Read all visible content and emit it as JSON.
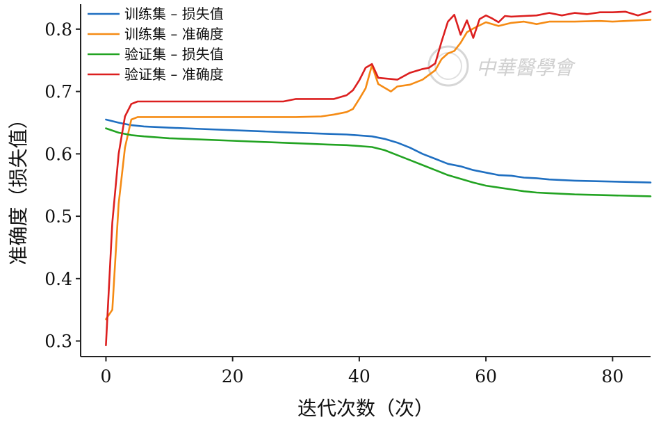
{
  "chart_data": {
    "type": "line",
    "xlabel": "迭代次数（次）",
    "ylabel": "准确度（损失值）",
    "xlim": [
      -4,
      86
    ],
    "ylim": [
      0.275,
      0.84
    ],
    "xticks": [
      0,
      20,
      40,
      60,
      80
    ],
    "yticks": [
      0.3,
      0.4,
      0.5,
      0.6,
      0.7,
      0.8
    ],
    "xtick_labels": [
      "0",
      "20",
      "40",
      "60",
      "80"
    ],
    "ytick_labels": [
      "0.3",
      "0.4",
      "0.5",
      "0.6",
      "0.7",
      "0.8"
    ],
    "grid": false,
    "legend_position": "top-left",
    "series": [
      {
        "name": "训练集 – 损失值",
        "color": "#1f6fc1",
        "points": [
          [
            0,
            0.655
          ],
          [
            2,
            0.65
          ],
          [
            4,
            0.646
          ],
          [
            6,
            0.644
          ],
          [
            10,
            0.642
          ],
          [
            15,
            0.64
          ],
          [
            20,
            0.638
          ],
          [
            25,
            0.636
          ],
          [
            30,
            0.634
          ],
          [
            35,
            0.632
          ],
          [
            38,
            0.631
          ],
          [
            42,
            0.628
          ],
          [
            44,
            0.624
          ],
          [
            46,
            0.618
          ],
          [
            48,
            0.61
          ],
          [
            50,
            0.6
          ],
          [
            52,
            0.592
          ],
          [
            54,
            0.584
          ],
          [
            56,
            0.58
          ],
          [
            58,
            0.574
          ],
          [
            60,
            0.57
          ],
          [
            62,
            0.566
          ],
          [
            64,
            0.565
          ],
          [
            66,
            0.562
          ],
          [
            68,
            0.561
          ],
          [
            70,
            0.559
          ],
          [
            74,
            0.557
          ],
          [
            78,
            0.556
          ],
          [
            82,
            0.555
          ],
          [
            86,
            0.554
          ]
        ]
      },
      {
        "name": "训练集 – 准确度",
        "color": "#f58b14",
        "points": [
          [
            0,
            0.335
          ],
          [
            1,
            0.35
          ],
          [
            2,
            0.52
          ],
          [
            3,
            0.61
          ],
          [
            4,
            0.655
          ],
          [
            5,
            0.659
          ],
          [
            10,
            0.659
          ],
          [
            20,
            0.659
          ],
          [
            30,
            0.659
          ],
          [
            34,
            0.66
          ],
          [
            36,
            0.663
          ],
          [
            38,
            0.667
          ],
          [
            39,
            0.672
          ],
          [
            40,
            0.688
          ],
          [
            41,
            0.705
          ],
          [
            42,
            0.742
          ],
          [
            43,
            0.712
          ],
          [
            44,
            0.706
          ],
          [
            45,
            0.7
          ],
          [
            46,
            0.708
          ],
          [
            48,
            0.711
          ],
          [
            50,
            0.719
          ],
          [
            52,
            0.734
          ],
          [
            53,
            0.752
          ],
          [
            54,
            0.761
          ],
          [
            55,
            0.765
          ],
          [
            56,
            0.778
          ],
          [
            57,
            0.795
          ],
          [
            58,
            0.801
          ],
          [
            60,
            0.811
          ],
          [
            62,
            0.805
          ],
          [
            64,
            0.81
          ],
          [
            66,
            0.812
          ],
          [
            68,
            0.808
          ],
          [
            70,
            0.812
          ],
          [
            74,
            0.812
          ],
          [
            78,
            0.813
          ],
          [
            80,
            0.812
          ],
          [
            84,
            0.814
          ],
          [
            86,
            0.815
          ]
        ]
      },
      {
        "name": "验证集 – 损失值",
        "color": "#22a322",
        "points": [
          [
            0,
            0.641
          ],
          [
            2,
            0.634
          ],
          [
            4,
            0.63
          ],
          [
            6,
            0.628
          ],
          [
            10,
            0.625
          ],
          [
            15,
            0.623
          ],
          [
            20,
            0.621
          ],
          [
            25,
            0.619
          ],
          [
            30,
            0.617
          ],
          [
            35,
            0.615
          ],
          [
            38,
            0.614
          ],
          [
            42,
            0.611
          ],
          [
            44,
            0.606
          ],
          [
            46,
            0.598
          ],
          [
            48,
            0.59
          ],
          [
            50,
            0.582
          ],
          [
            52,
            0.574
          ],
          [
            54,
            0.566
          ],
          [
            56,
            0.56
          ],
          [
            58,
            0.554
          ],
          [
            60,
            0.549
          ],
          [
            62,
            0.546
          ],
          [
            64,
            0.543
          ],
          [
            66,
            0.54
          ],
          [
            68,
            0.538
          ],
          [
            70,
            0.537
          ],
          [
            74,
            0.535
          ],
          [
            78,
            0.534
          ],
          [
            82,
            0.533
          ],
          [
            86,
            0.532
          ]
        ]
      },
      {
        "name": "验证集 – 准确度",
        "color": "#dc1f1f",
        "points": [
          [
            0,
            0.293
          ],
          [
            1,
            0.49
          ],
          [
            2,
            0.6
          ],
          [
            3,
            0.66
          ],
          [
            4,
            0.68
          ],
          [
            5,
            0.684
          ],
          [
            10,
            0.684
          ],
          [
            20,
            0.684
          ],
          [
            28,
            0.684
          ],
          [
            30,
            0.688
          ],
          [
            36,
            0.688
          ],
          [
            38,
            0.694
          ],
          [
            39,
            0.702
          ],
          [
            40,
            0.718
          ],
          [
            41,
            0.738
          ],
          [
            42,
            0.744
          ],
          [
            43,
            0.722
          ],
          [
            44,
            0.721
          ],
          [
            46,
            0.719
          ],
          [
            48,
            0.73
          ],
          [
            50,
            0.736
          ],
          [
            51,
            0.738
          ],
          [
            52,
            0.745
          ],
          [
            53,
            0.78
          ],
          [
            54,
            0.812
          ],
          [
            55,
            0.823
          ],
          [
            56,
            0.791
          ],
          [
            57,
            0.814
          ],
          [
            58,
            0.786
          ],
          [
            59,
            0.816
          ],
          [
            60,
            0.822
          ],
          [
            61,
            0.817
          ],
          [
            62,
            0.811
          ],
          [
            63,
            0.821
          ],
          [
            64,
            0.82
          ],
          [
            66,
            0.821
          ],
          [
            68,
            0.822
          ],
          [
            70,
            0.826
          ],
          [
            72,
            0.822
          ],
          [
            74,
            0.826
          ],
          [
            76,
            0.824
          ],
          [
            78,
            0.827
          ],
          [
            80,
            0.827
          ],
          [
            82,
            0.828
          ],
          [
            84,
            0.822
          ],
          [
            86,
            0.828
          ]
        ]
      }
    ]
  },
  "watermark": {
    "text": "中華醫學會"
  }
}
